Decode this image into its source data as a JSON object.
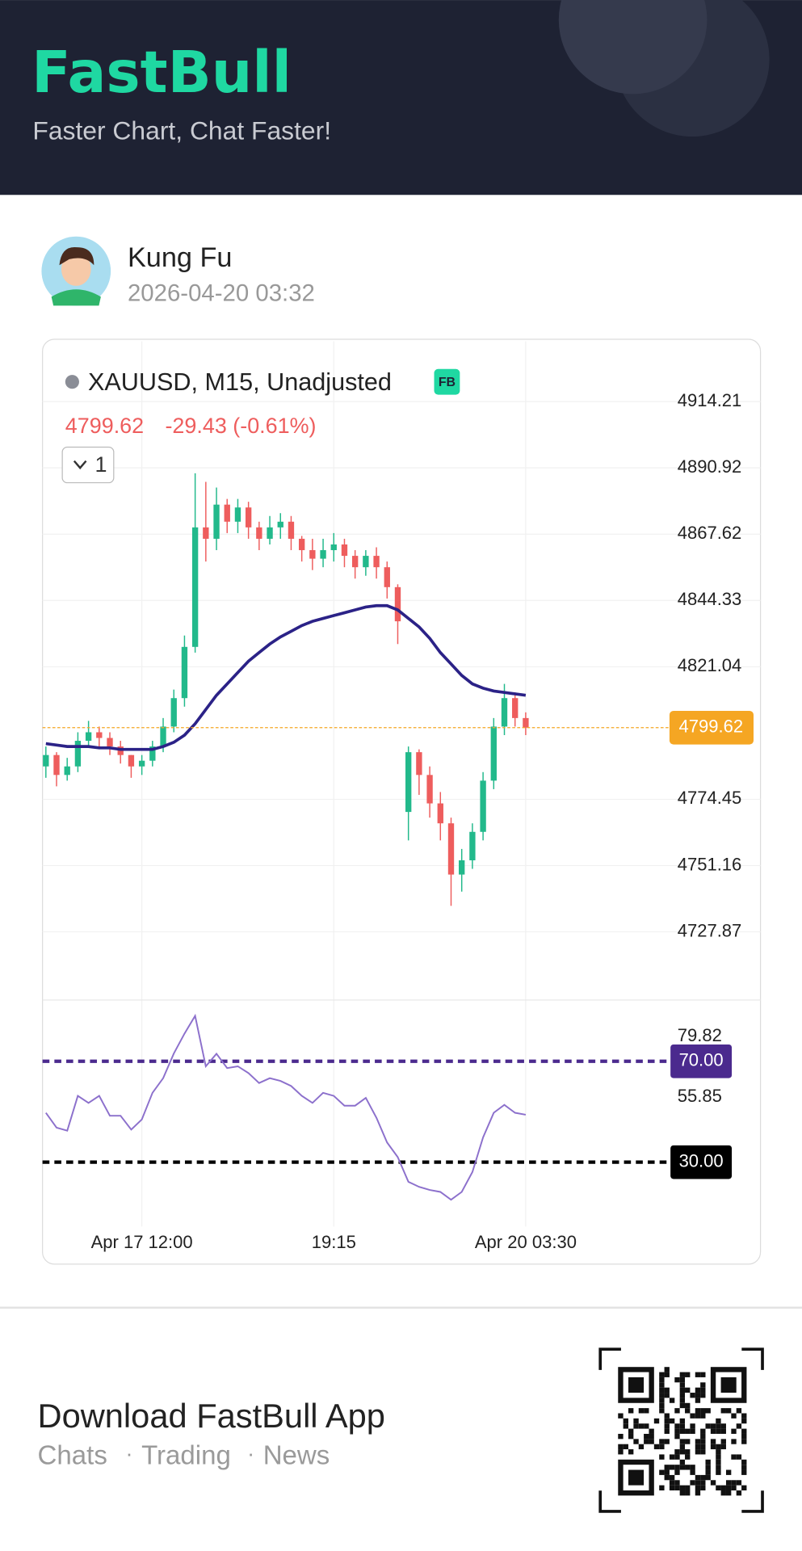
{
  "header": {
    "brand": "FastBull",
    "tagline": "Faster Chart, Chat Faster!"
  },
  "post": {
    "author": "Kung Fu",
    "time": "2026-04-20 03:32"
  },
  "chart_data": {
    "type": "candlestick",
    "title": "XAUUSD, M15, Unadjusted",
    "badge": "FB",
    "change": "-29.43 (-0.61%)",
    "interval_selector": "1",
    "categories": [
      null,
      null,
      null,
      null,
      null,
      null,
      null,
      null,
      null,
      "Apr 17 12:00",
      null,
      null,
      null,
      null,
      null,
      null,
      null,
      null,
      null,
      null,
      null,
      null,
      null,
      null,
      null,
      null,
      null,
      "19:15",
      null,
      null,
      null,
      null,
      null,
      null,
      null,
      null,
      null,
      null,
      null,
      null,
      null,
      null,
      null,
      null,
      null,
      "Apr 20 03:30"
    ],
    "open": [
      4786,
      4790,
      4783,
      4786,
      4795,
      4798,
      4796,
      4793,
      4790,
      4786,
      4788,
      4793,
      4800,
      4810,
      4828,
      4870,
      4866,
      4878,
      4872,
      4877,
      4870,
      4866,
      4870,
      4872,
      4866,
      4862,
      4859,
      4862,
      4864,
      4860,
      4856,
      4860,
      4856,
      4849,
      4770,
      4791,
      4783,
      4773,
      4766,
      4748,
      4753,
      4763,
      4781,
      4800,
      4810,
      4803
    ],
    "high": [
      4793,
      4791,
      4789,
      4798,
      4802,
      4800,
      4798,
      4795,
      4790,
      4790,
      4795,
      4803,
      4813,
      4832,
      4889,
      4886,
      4884,
      4880,
      4880,
      4879,
      4872,
      4874,
      4875,
      4874,
      4867,
      4866,
      4866,
      4868,
      4866,
      4862,
      4862,
      4863,
      4858,
      4850,
      4793,
      4792,
      4786,
      4777,
      4768,
      4757,
      4766,
      4784,
      4803,
      4815,
      4812,
      4805
    ],
    "low": [
      4782,
      4779,
      4781,
      4784,
      4793,
      4793,
      4790,
      4787,
      4782,
      4783,
      4786,
      4791,
      4798,
      4807,
      4826,
      4858,
      4862,
      4868,
      4868,
      4866,
      4862,
      4864,
      4866,
      4862,
      4858,
      4855,
      4856,
      4858,
      4856,
      4852,
      4853,
      4852,
      4845,
      4829,
      4760,
      4776,
      4768,
      4760,
      4737,
      4742,
      4750,
      4760,
      4778,
      4797,
      4800,
      4797
    ],
    "close": [
      4790,
      4783,
      4786,
      4795,
      4798,
      4796,
      4793,
      4790,
      4786,
      4788,
      4793,
      4800,
      4810,
      4828,
      4870,
      4866,
      4878,
      4872,
      4877,
      4870,
      4866,
      4870,
      4872,
      4866,
      4862,
      4859,
      4862,
      4864,
      4860,
      4856,
      4860,
      4856,
      4849,
      4837,
      4791,
      4783,
      4773,
      4766,
      4748,
      4753,
      4763,
      4781,
      4800,
      4810,
      4803,
      4799.62
    ],
    "up_color": "#22b98b",
    "down_color": "#ee5d5d",
    "last_price_color": "#f5a623",
    "ylim": [
      4704.25,
      4935.4
    ],
    "yticks": [
      4914.21,
      4890.92,
      4867.62,
      4844.33,
      4821.04,
      4774.45,
      4751.16,
      4727.87
    ],
    "grid": true,
    "ma": {
      "color": "#2b2287",
      "values": [
        4794,
        4793.5,
        4793,
        4793,
        4793,
        4792.5,
        4792.5,
        4792,
        4792,
        4792,
        4792,
        4793,
        4794.5,
        4797,
        4801,
        4806,
        4811,
        4815,
        4819,
        4823,
        4826,
        4829,
        4831.5,
        4833.5,
        4835.5,
        4837,
        4838,
        4839,
        4840,
        4841,
        4842,
        4842.5,
        4842.5,
        4841,
        4838,
        4835,
        4831,
        4826,
        4822,
        4818,
        4815,
        4813.5,
        4812.5,
        4812,
        4811.5,
        4811
      ]
    },
    "rsi": {
      "color": "#8c70cc",
      "values": [
        49.6,
        43.7,
        42.5,
        56.3,
        53.5,
        56.3,
        48.4,
        48.4,
        42.9,
        46.9,
        57.5,
        63.3,
        73.1,
        81,
        88,
        68,
        73,
        67.3,
        68,
        65.3,
        61.4,
        63.3,
        62.2,
        60.2,
        56.3,
        53.5,
        57.5,
        56.3,
        52.4,
        52.4,
        55.5,
        47.6,
        37.8,
        32,
        22.2,
        20.2,
        19,
        18.2,
        15.1,
        18.2,
        26.1,
        39.8,
        49.6,
        52.7,
        49.6,
        48.8
      ],
      "ylim": [
        8.4,
        93.9
      ],
      "yticks": [
        79.82,
        55.85
      ],
      "levels": [
        {
          "value": 70,
          "label": "70.00",
          "color": "#4b2a8e"
        },
        {
          "value": 30,
          "label": "30.00",
          "color": "#000000"
        }
      ]
    }
  },
  "footer": {
    "title": "Download FastBull App",
    "links": [
      "Chats",
      "Trading",
      "News"
    ]
  }
}
